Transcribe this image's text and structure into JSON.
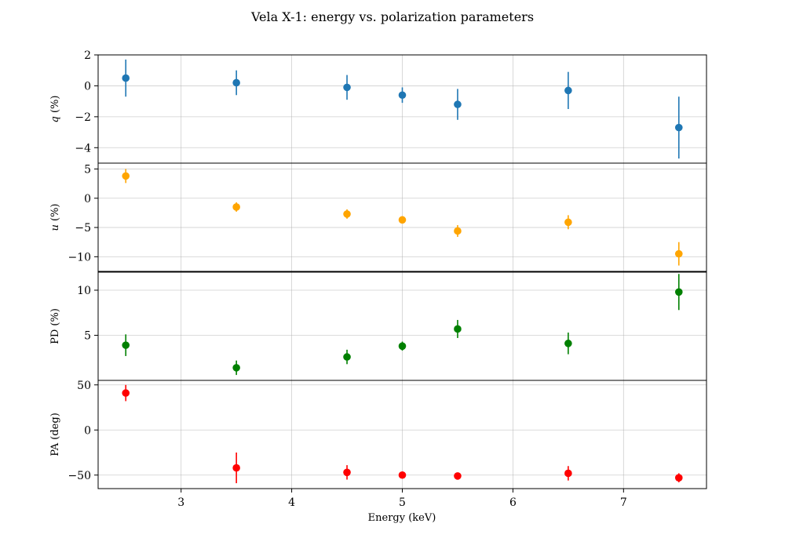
{
  "title": "Vela X-1: energy vs. polarization parameters",
  "chart_data": {
    "type": "scatter",
    "title": "Vela X-1: energy vs. polarization parameters",
    "xlabel": "Energy (keV)",
    "xlim": [
      2.25,
      7.75
    ],
    "xticks": [
      3,
      4,
      5,
      6,
      7
    ],
    "x": [
      2.5,
      3.5,
      4.5,
      5.0,
      5.5,
      6.5,
      7.5
    ],
    "grid": true,
    "panels": [
      {
        "name": "q",
        "ylabel_var": "q",
        "ylabel_unit": " (%)",
        "color": "#1f77b4",
        "ylim": [
          -5.0,
          2.0
        ],
        "yticks": [
          -4,
          -2,
          0,
          2
        ],
        "values": [
          0.5,
          0.2,
          -0.1,
          -0.6,
          -1.2,
          -0.3,
          -2.7
        ],
        "errors": [
          1.2,
          0.8,
          0.8,
          0.5,
          1.0,
          1.2,
          2.0
        ]
      },
      {
        "name": "u",
        "ylabel_var": "u",
        "ylabel_unit": " (%)",
        "color": "#ffa500",
        "ylim": [
          -12.5,
          6.0
        ],
        "yticks": [
          -10,
          -5,
          0,
          5
        ],
        "values": [
          3.8,
          -1.5,
          -2.7,
          -3.7,
          -5.6,
          -4.1,
          -9.5
        ],
        "errors": [
          1.2,
          0.8,
          0.8,
          0.5,
          1.0,
          1.2,
          2.0
        ]
      },
      {
        "name": "PD",
        "ylabel_var": "",
        "ylabel_unit": "PD (%)",
        "color": "#008000",
        "ylim": [
          0.0,
          12.0
        ],
        "yticks": [
          5,
          10
        ],
        "values": [
          3.9,
          1.4,
          2.6,
          3.8,
          5.7,
          4.1,
          9.8
        ],
        "errors": [
          1.2,
          0.8,
          0.8,
          0.5,
          1.0,
          1.2,
          2.0
        ]
      },
      {
        "name": "PA",
        "ylabel_var": "",
        "ylabel_unit": "PA (deg)",
        "color": "#ff0000",
        "ylim": [
          -65.0,
          55.0
        ],
        "yticks": [
          -50,
          0,
          50
        ],
        "values": [
          41,
          -42,
          -47,
          -50,
          -51,
          -48,
          -53
        ],
        "errors": [
          9,
          17,
          8,
          3,
          3,
          8,
          5
        ]
      }
    ]
  }
}
